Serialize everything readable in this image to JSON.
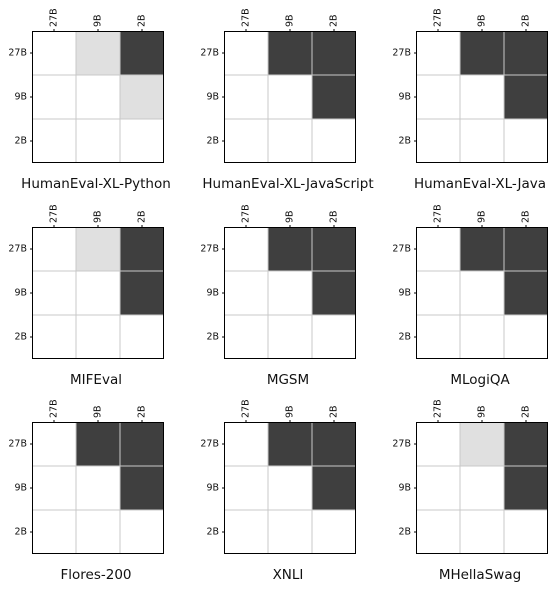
{
  "chart_data": {
    "type": "heatmap",
    "value_levels": {
      "0": "#ffffff",
      "1": "#e0e0e0",
      "2": "#3f3f3f"
    },
    "grid_lines": true,
    "panels": [
      {
        "title": "HumanEval-XL-Python",
        "rows": [
          "27B",
          "9B",
          "2B"
        ],
        "cols": [
          "27B",
          "9B",
          "2B"
        ],
        "values": [
          [
            0,
            1,
            2
          ],
          [
            0,
            0,
            1
          ],
          [
            0,
            0,
            0
          ]
        ]
      },
      {
        "title": "HumanEval-XL-JavaScript",
        "rows": [
          "27B",
          "9B",
          "2B"
        ],
        "cols": [
          "27B",
          "9B",
          "2B"
        ],
        "values": [
          [
            0,
            2,
            2
          ],
          [
            0,
            0,
            2
          ],
          [
            0,
            0,
            0
          ]
        ]
      },
      {
        "title": "HumanEval-XL-Java",
        "rows": [
          "27B",
          "9B",
          "2B"
        ],
        "cols": [
          "27B",
          "9B",
          "2B"
        ],
        "values": [
          [
            0,
            2,
            2
          ],
          [
            0,
            0,
            2
          ],
          [
            0,
            0,
            0
          ]
        ]
      },
      {
        "title": "MIFEval",
        "rows": [
          "27B",
          "9B",
          "2B"
        ],
        "cols": [
          "27B",
          "9B",
          "2B"
        ],
        "values": [
          [
            0,
            1,
            2
          ],
          [
            0,
            0,
            2
          ],
          [
            0,
            0,
            0
          ]
        ]
      },
      {
        "title": "MGSM",
        "rows": [
          "27B",
          "9B",
          "2B"
        ],
        "cols": [
          "27B",
          "9B",
          "2B"
        ],
        "values": [
          [
            0,
            2,
            2
          ],
          [
            0,
            0,
            2
          ],
          [
            0,
            0,
            0
          ]
        ]
      },
      {
        "title": "MLogiQA",
        "rows": [
          "27B",
          "9B",
          "2B"
        ],
        "cols": [
          "27B",
          "9B",
          "2B"
        ],
        "values": [
          [
            0,
            2,
            2
          ],
          [
            0,
            0,
            2
          ],
          [
            0,
            0,
            0
          ]
        ]
      },
      {
        "title": "Flores-200",
        "rows": [
          "27B",
          "9B",
          "2B"
        ],
        "cols": [
          "27B",
          "9B",
          "2B"
        ],
        "values": [
          [
            0,
            2,
            2
          ],
          [
            0,
            0,
            2
          ],
          [
            0,
            0,
            0
          ]
        ]
      },
      {
        "title": "XNLI",
        "rows": [
          "27B",
          "9B",
          "2B"
        ],
        "cols": [
          "27B",
          "9B",
          "2B"
        ],
        "values": [
          [
            0,
            2,
            2
          ],
          [
            0,
            0,
            2
          ],
          [
            0,
            0,
            0
          ]
        ]
      },
      {
        "title": "MHellaSwag",
        "rows": [
          "27B",
          "9B",
          "2B"
        ],
        "cols": [
          "27B",
          "9B",
          "2B"
        ],
        "values": [
          [
            0,
            1,
            2
          ],
          [
            0,
            0,
            2
          ],
          [
            0,
            0,
            0
          ]
        ]
      }
    ]
  }
}
